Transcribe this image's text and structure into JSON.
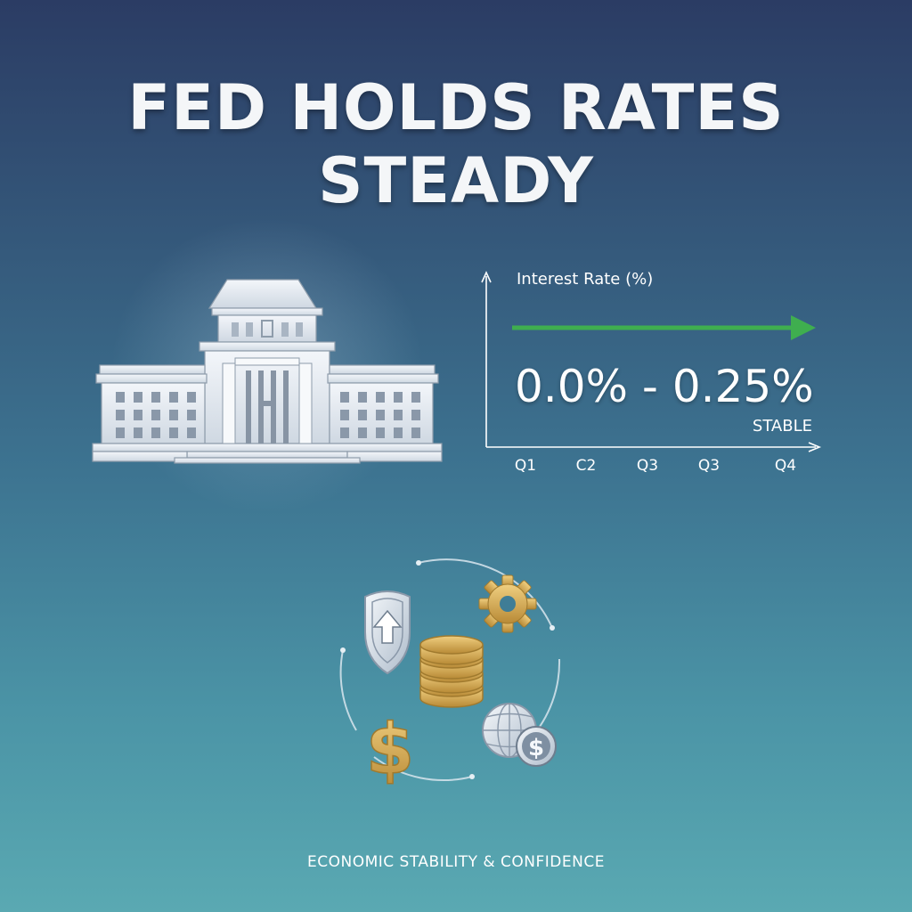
{
  "headline": "FED HOLDS RATES STEADY",
  "chart": {
    "title": "Interest Rate (%)",
    "rate_range": "0.0% - 0.25%",
    "status": "STABLE",
    "x_ticks": [
      "Q1",
      "C2",
      "Q3",
      "Q3",
      "Q4"
    ],
    "trend_color": "#3fae4f"
  },
  "icons": [
    "shield-arrow-icon",
    "gear-icon",
    "coin-stack-icon",
    "dollar-icon",
    "globe-dollar-icon"
  ],
  "footer": "ECONOMIC STABILITY & CONFIDENCE",
  "colors": {
    "gold": "#d4a84c",
    "silver": "#dfe6ee",
    "bg_top": "#2b3c64",
    "bg_bottom": "#5aa9b2"
  }
}
